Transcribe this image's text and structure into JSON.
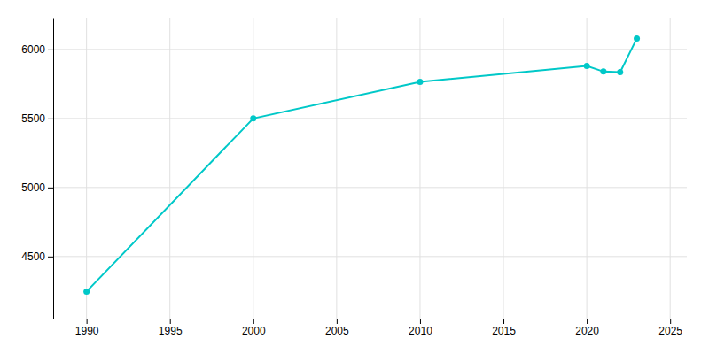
{
  "chart_data": {
    "type": "line",
    "x": [
      1990,
      2000,
      2010,
      2020,
      2021,
      2022,
      2023
    ],
    "values": [
      4246,
      5500,
      5765,
      5880,
      5840,
      5835,
      6080
    ],
    "color": "#00c8c8",
    "marker": "circle",
    "xlim": [
      1988,
      2026
    ],
    "ylim": [
      4050,
      6230
    ],
    "xticks": [
      1990,
      1995,
      2000,
      2005,
      2010,
      2015,
      2020,
      2025
    ],
    "yticks": [
      4500,
      5000,
      5500,
      6000
    ],
    "grid": true
  }
}
